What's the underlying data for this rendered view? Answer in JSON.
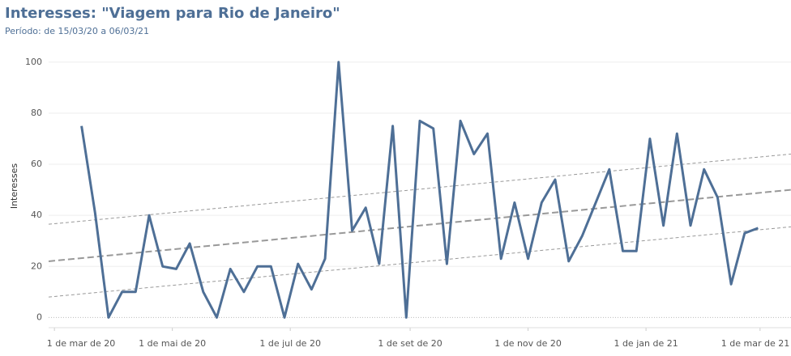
{
  "chart_data": {
    "type": "line",
    "title": "Interesses: \"Viagem para Rio de Janeiro\"",
    "subtitle": "Período: de 15/03/20 a 06/03/21",
    "y_label": "Interesses",
    "x": [
      "2020-03-15",
      "2020-03-22",
      "2020-03-29",
      "2020-04-05",
      "2020-04-12",
      "2020-04-19",
      "2020-04-26",
      "2020-05-03",
      "2020-05-10",
      "2020-05-17",
      "2020-05-24",
      "2020-05-31",
      "2020-06-07",
      "2020-06-14",
      "2020-06-21",
      "2020-06-28",
      "2020-07-05",
      "2020-07-12",
      "2020-07-19",
      "2020-07-26",
      "2020-08-02",
      "2020-08-09",
      "2020-08-16",
      "2020-08-23",
      "2020-08-30",
      "2020-09-06",
      "2020-09-13",
      "2020-09-20",
      "2020-09-27",
      "2020-10-04",
      "2020-10-11",
      "2020-10-18",
      "2020-10-25",
      "2020-11-01",
      "2020-11-08",
      "2020-11-15",
      "2020-11-22",
      "2020-11-29",
      "2020-12-06",
      "2020-12-13",
      "2020-12-20",
      "2020-12-27",
      "2021-01-03",
      "2021-01-10",
      "2021-01-17",
      "2021-01-24",
      "2021-01-31",
      "2021-02-07",
      "2021-02-14",
      "2021-02-21",
      "2021-02-28"
    ],
    "series": [
      {
        "name": "Interesses",
        "color": "#4e6f96",
        "values": [
          75,
          41,
          0,
          10,
          10,
          40,
          20,
          19,
          29,
          10,
          0,
          19,
          10,
          20,
          20,
          0,
          21,
          11,
          23,
          100,
          34,
          43,
          21,
          75,
          0,
          77,
          74,
          21,
          77,
          64,
          72,
          23,
          45,
          23,
          45,
          54,
          22,
          32,
          45,
          58,
          26,
          26,
          70,
          36,
          72,
          36,
          58,
          47,
          13,
          33,
          35
        ]
      }
    ],
    "trend_lines": [
      {
        "values": [
          22,
          50
        ],
        "color": "#999999",
        "dash": "8 4",
        "width": 2
      },
      {
        "values": [
          36.5,
          64
        ],
        "color": "#999999",
        "dash": "4 3",
        "width": 1
      },
      {
        "values": [
          8,
          35.5
        ],
        "color": "#999999",
        "dash": "4 3",
        "width": 1
      }
    ],
    "xlim": [
      "2020-02-27",
      "2021-03-17"
    ],
    "xticks": [
      {
        "value": "2020-03-01",
        "label": "1 de mar de 20"
      },
      {
        "value": "2020-05-01",
        "label": "1 de mai de 20"
      },
      {
        "value": "2020-07-01",
        "label": "1 de jul de 20"
      },
      {
        "value": "2020-09-01",
        "label": "1 de set de 20"
      },
      {
        "value": "2020-11-01",
        "label": "1 de nov de 20"
      },
      {
        "value": "2021-01-01",
        "label": "1 de jan de 21"
      },
      {
        "value": "2021-03-01",
        "label": "1 de mar de 21"
      }
    ],
    "ylim": [
      -4,
      105
    ],
    "yticks": [
      0,
      20,
      40,
      60,
      80,
      100
    ],
    "grid": true
  }
}
